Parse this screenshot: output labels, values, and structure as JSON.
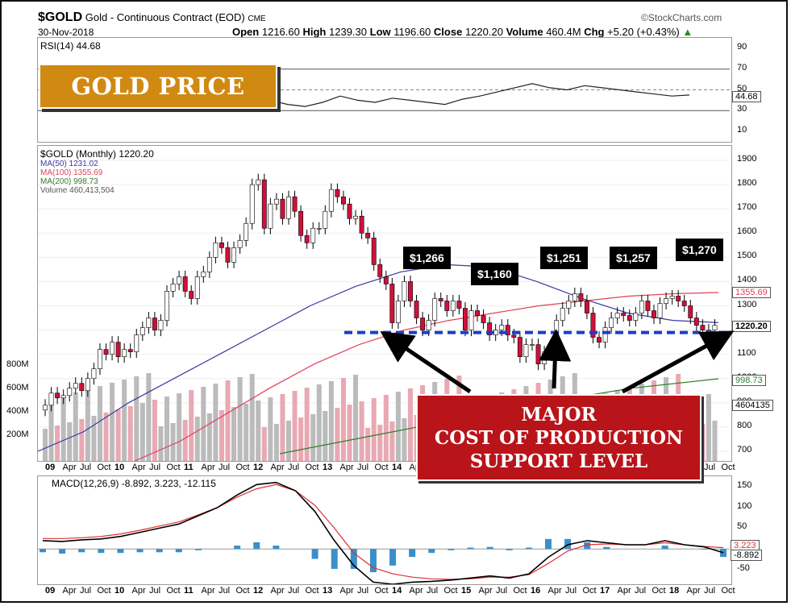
{
  "header": {
    "symbol": "$GOLD",
    "description": "Gold - Continuous Contract (EOD)",
    "exchange": "CME",
    "date": "30-Nov-2018",
    "brand": "©StockCharts.com",
    "open_label": "Open",
    "open": "1216.60",
    "high_label": "High",
    "high": "1239.30",
    "low_label": "Low",
    "low": "1196.60",
    "close_label": "Close",
    "close": "1220.20",
    "volume_label": "Volume",
    "volume": "460.4M",
    "chg_label": "Chg",
    "chg": "+5.20 (+0.43%)",
    "chg_arrow": "▲"
  },
  "overlay": {
    "title_box": "GOLD PRICE",
    "support_line1": "MAJOR",
    "support_line2": "COST OF PRODUCTION",
    "support_line3": "SUPPORT LEVEL",
    "callouts": [
      "$1,266",
      "$1,160",
      "$1,251",
      "$1,257",
      "$1,270"
    ]
  },
  "colors": {
    "up": "#ffffff",
    "down": "#d0103a",
    "ma50": "#3a3a9e",
    "ma100": "#e0405a",
    "ma200": "#2e7d2e",
    "macd": "#000000",
    "signal": "#e03030",
    "hist": "#3a8fc8",
    "support": "#1a3ccc"
  },
  "chart_data": [
    {
      "type": "line",
      "title": "RSI(14) 44.68",
      "series": [
        {
          "name": "RSI(14)",
          "values": [
            58,
            62,
            60,
            66,
            64,
            67,
            63,
            56,
            52,
            48,
            44,
            40,
            36,
            34,
            38,
            44,
            40,
            38,
            42,
            40,
            38,
            36,
            41,
            44,
            48,
            52,
            56,
            52,
            50,
            54,
            52,
            50,
            48,
            46,
            44,
            45
          ]
        }
      ],
      "ylim": [
        0,
        100
      ],
      "y_ticks": [
        "90",
        "70",
        "50",
        "30",
        "10"
      ],
      "reference_lines": [
        70,
        50,
        30
      ],
      "last_value": "44.68"
    },
    {
      "type": "candlestick",
      "legend": [
        "$GOLD (Monthly) 1220.20",
        "MA(50) 1231.02",
        "MA(100) 1355.69",
        "MA(200) 998.73",
        "Volume 460,413,504"
      ],
      "x_labels": [
        "09",
        "Apr",
        "Jul",
        "Oct",
        "10",
        "Apr",
        "Jul",
        "Oct",
        "11",
        "Apr",
        "Jul",
        "Oct",
        "12",
        "Apr",
        "Jul",
        "Oct",
        "13",
        "Apr",
        "Jul",
        "Oct",
        "14",
        "Apr",
        "Jul",
        "Oct",
        "15",
        "Apr",
        "Jul",
        "Oct",
        "16",
        "Apr",
        "Jul",
        "Oct",
        "17",
        "Apr",
        "Jul",
        "Oct",
        "18",
        "Apr",
        "Jul",
        "Oct"
      ],
      "y_ticks": [
        "1900",
        "1800",
        "1700",
        "1600",
        "1500",
        "1400",
        "1300",
        "1200",
        "1100",
        "1000",
        "900",
        "800",
        "700"
      ],
      "ylim": [
        660,
        1960
      ],
      "volume_ticks": [
        "800M",
        "600M",
        "400M",
        "200M"
      ],
      "close": [
        890,
        940,
        920,
        930,
        960,
        980,
        950,
        1000,
        1040,
        1120,
        1100,
        1150,
        1090,
        1120,
        1110,
        1180,
        1210,
        1250,
        1200,
        1240,
        1360,
        1390,
        1420,
        1360,
        1330,
        1420,
        1440,
        1500,
        1560,
        1540,
        1480,
        1540,
        1570,
        1640,
        1800,
        1820,
        1620,
        1720,
        1740,
        1660,
        1750,
        1690,
        1590,
        1560,
        1620,
        1620,
        1690,
        1780,
        1750,
        1720,
        1660,
        1670,
        1600,
        1580,
        1470,
        1420,
        1390,
        1230,
        1320,
        1400,
        1320,
        1250,
        1200,
        1240,
        1330,
        1320,
        1280,
        1320,
        1290,
        1200,
        1280,
        1260,
        1230,
        1180,
        1200,
        1220,
        1180,
        1170,
        1090,
        1140,
        1140,
        1060,
        1110,
        1120,
        1240,
        1290,
        1320,
        1350,
        1320,
        1270,
        1170,
        1150,
        1210,
        1250,
        1270,
        1260,
        1240,
        1270,
        1320,
        1280,
        1250,
        1310,
        1330,
        1340,
        1320,
        1300,
        1250,
        1220,
        1200,
        1200,
        1220
      ],
      "series": [
        {
          "name": "MA(50)",
          "values": [
            700,
            780,
            900,
            1000,
            1100,
            1200,
            1300,
            1380,
            1440,
            1470,
            1460,
            1400,
            1330,
            1270,
            1240,
            1231
          ]
        },
        {
          "name": "MA(100)",
          "values": [
            660,
            740,
            850,
            960,
            1060,
            1140,
            1200,
            1240,
            1270,
            1300,
            1320,
            1340,
            1350,
            1355
          ]
        },
        {
          "name": "MA(200)",
          "values": [
            690,
            760,
            830,
            900,
            960,
            999
          ]
        }
      ],
      "price_tags": [
        "1355.69",
        "1220.20",
        "998.73",
        "4604135"
      ],
      "support_level": 1190
    },
    {
      "type": "line",
      "title": "MACD(12,26,9) -8.892, 3.223, -12.115",
      "x_labels": [
        "09",
        "Apr",
        "Jul",
        "Oct",
        "10",
        "Apr",
        "Jul",
        "Oct",
        "11",
        "Apr",
        "Jul",
        "Oct",
        "12",
        "Apr",
        "Jul",
        "Oct",
        "13",
        "Apr",
        "Jul",
        "Oct",
        "14",
        "Apr",
        "Jul",
        "Oct",
        "15",
        "Apr",
        "Jul",
        "Oct",
        "16",
        "Apr",
        "Jul",
        "Oct",
        "17",
        "Apr",
        "Jul",
        "Oct",
        "18",
        "Apr",
        "Jul",
        "Oct"
      ],
      "y_ticks": [
        "150",
        "100",
        "50",
        "0",
        "-50"
      ],
      "ylim": [
        -85,
        175
      ],
      "series": [
        {
          "name": "MACD(12,26,9)",
          "values": [
            20,
            18,
            22,
            24,
            30,
            40,
            50,
            60,
            80,
            100,
            130,
            155,
            160,
            140,
            90,
            20,
            -40,
            -80,
            -85,
            -80,
            -78,
            -75,
            -70,
            -65,
            -70,
            -60,
            -20,
            10,
            20,
            15,
            10,
            10,
            20,
            10,
            5,
            -9
          ]
        },
        {
          "name": "signal",
          "values": [
            25,
            25,
            27,
            30,
            36,
            45,
            55,
            65,
            82,
            100,
            125,
            145,
            155,
            140,
            105,
            50,
            -10,
            -45,
            -60,
            -68,
            -72,
            -73,
            -72,
            -68,
            -68,
            -62,
            -35,
            -5,
            10,
            12,
            10,
            10,
            15,
            10,
            6,
            3
          ]
        }
      ],
      "last_values": [
        "3.223",
        "-8.892"
      ]
    }
  ]
}
